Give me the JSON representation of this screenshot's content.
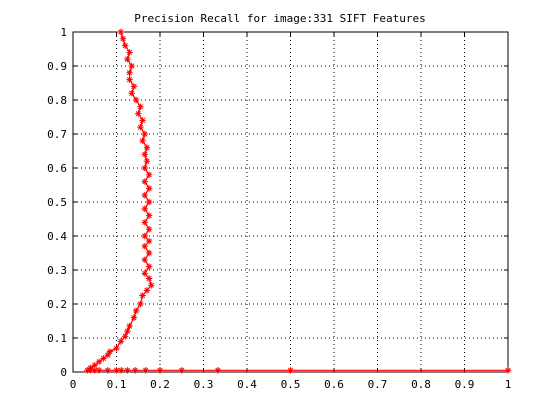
{
  "chart_data": {
    "type": "line",
    "title": "Precision Recall for image:331 SIFT Features",
    "xlabel": "",
    "ylabel": "",
    "xlim": [
      0,
      1
    ],
    "ylim": [
      0,
      1
    ],
    "grid": true,
    "x_ticks": [
      "0",
      "0.1",
      "0.2",
      "0.3",
      "0.4",
      "0.5",
      "0.6",
      "0.7",
      "0.8",
      "0.9",
      "1"
    ],
    "y_ticks": [
      "0",
      "0.1",
      "0.2",
      "0.3",
      "0.4",
      "0.5",
      "0.6",
      "0.7",
      "0.8",
      "0.9",
      "1"
    ],
    "colors": {
      "series": "#ff0000",
      "grid": "#000000",
      "axis": "#000000"
    },
    "marker": "asterisk",
    "series": [
      {
        "points": [
          [
            1.0,
            0.005
          ],
          [
            0.5,
            0.005
          ],
          [
            0.333,
            0.005
          ],
          [
            0.25,
            0.005
          ],
          [
            0.2,
            0.005
          ],
          [
            0.167,
            0.005
          ],
          [
            0.143,
            0.005
          ],
          [
            0.125,
            0.005
          ],
          [
            0.111,
            0.005
          ],
          [
            0.1,
            0.005
          ],
          [
            0.08,
            0.005
          ],
          [
            0.06,
            0.005
          ],
          [
            0.05,
            0.005
          ],
          [
            0.04,
            0.005
          ],
          [
            0.033,
            0.005
          ],
          [
            0.04,
            0.012
          ],
          [
            0.05,
            0.02
          ],
          [
            0.06,
            0.03
          ],
          [
            0.07,
            0.04
          ],
          [
            0.08,
            0.05
          ],
          [
            0.085,
            0.06
          ],
          [
            0.1,
            0.07
          ],
          [
            0.11,
            0.09
          ],
          [
            0.12,
            0.105
          ],
          [
            0.125,
            0.12
          ],
          [
            0.13,
            0.135
          ],
          [
            0.14,
            0.16
          ],
          [
            0.145,
            0.18
          ],
          [
            0.155,
            0.2
          ],
          [
            0.16,
            0.225
          ],
          [
            0.17,
            0.24
          ],
          [
            0.18,
            0.255
          ],
          [
            0.175,
            0.275
          ],
          [
            0.165,
            0.29
          ],
          [
            0.175,
            0.31
          ],
          [
            0.165,
            0.33
          ],
          [
            0.175,
            0.35
          ],
          [
            0.165,
            0.37
          ],
          [
            0.175,
            0.385
          ],
          [
            0.165,
            0.4
          ],
          [
            0.175,
            0.42
          ],
          [
            0.165,
            0.44
          ],
          [
            0.175,
            0.46
          ],
          [
            0.165,
            0.48
          ],
          [
            0.175,
            0.5
          ],
          [
            0.165,
            0.52
          ],
          [
            0.175,
            0.54
          ],
          [
            0.165,
            0.56
          ],
          [
            0.175,
            0.58
          ],
          [
            0.165,
            0.6
          ],
          [
            0.17,
            0.62
          ],
          [
            0.165,
            0.64
          ],
          [
            0.17,
            0.66
          ],
          [
            0.16,
            0.68
          ],
          [
            0.165,
            0.7
          ],
          [
            0.155,
            0.72
          ],
          [
            0.16,
            0.74
          ],
          [
            0.15,
            0.76
          ],
          [
            0.155,
            0.78
          ],
          [
            0.145,
            0.8
          ],
          [
            0.135,
            0.82
          ],
          [
            0.14,
            0.84
          ],
          [
            0.13,
            0.86
          ],
          [
            0.13,
            0.88
          ],
          [
            0.135,
            0.9
          ],
          [
            0.125,
            0.92
          ],
          [
            0.13,
            0.94
          ],
          [
            0.12,
            0.96
          ],
          [
            0.115,
            0.98
          ],
          [
            0.11,
            1.0
          ]
        ]
      }
    ]
  }
}
